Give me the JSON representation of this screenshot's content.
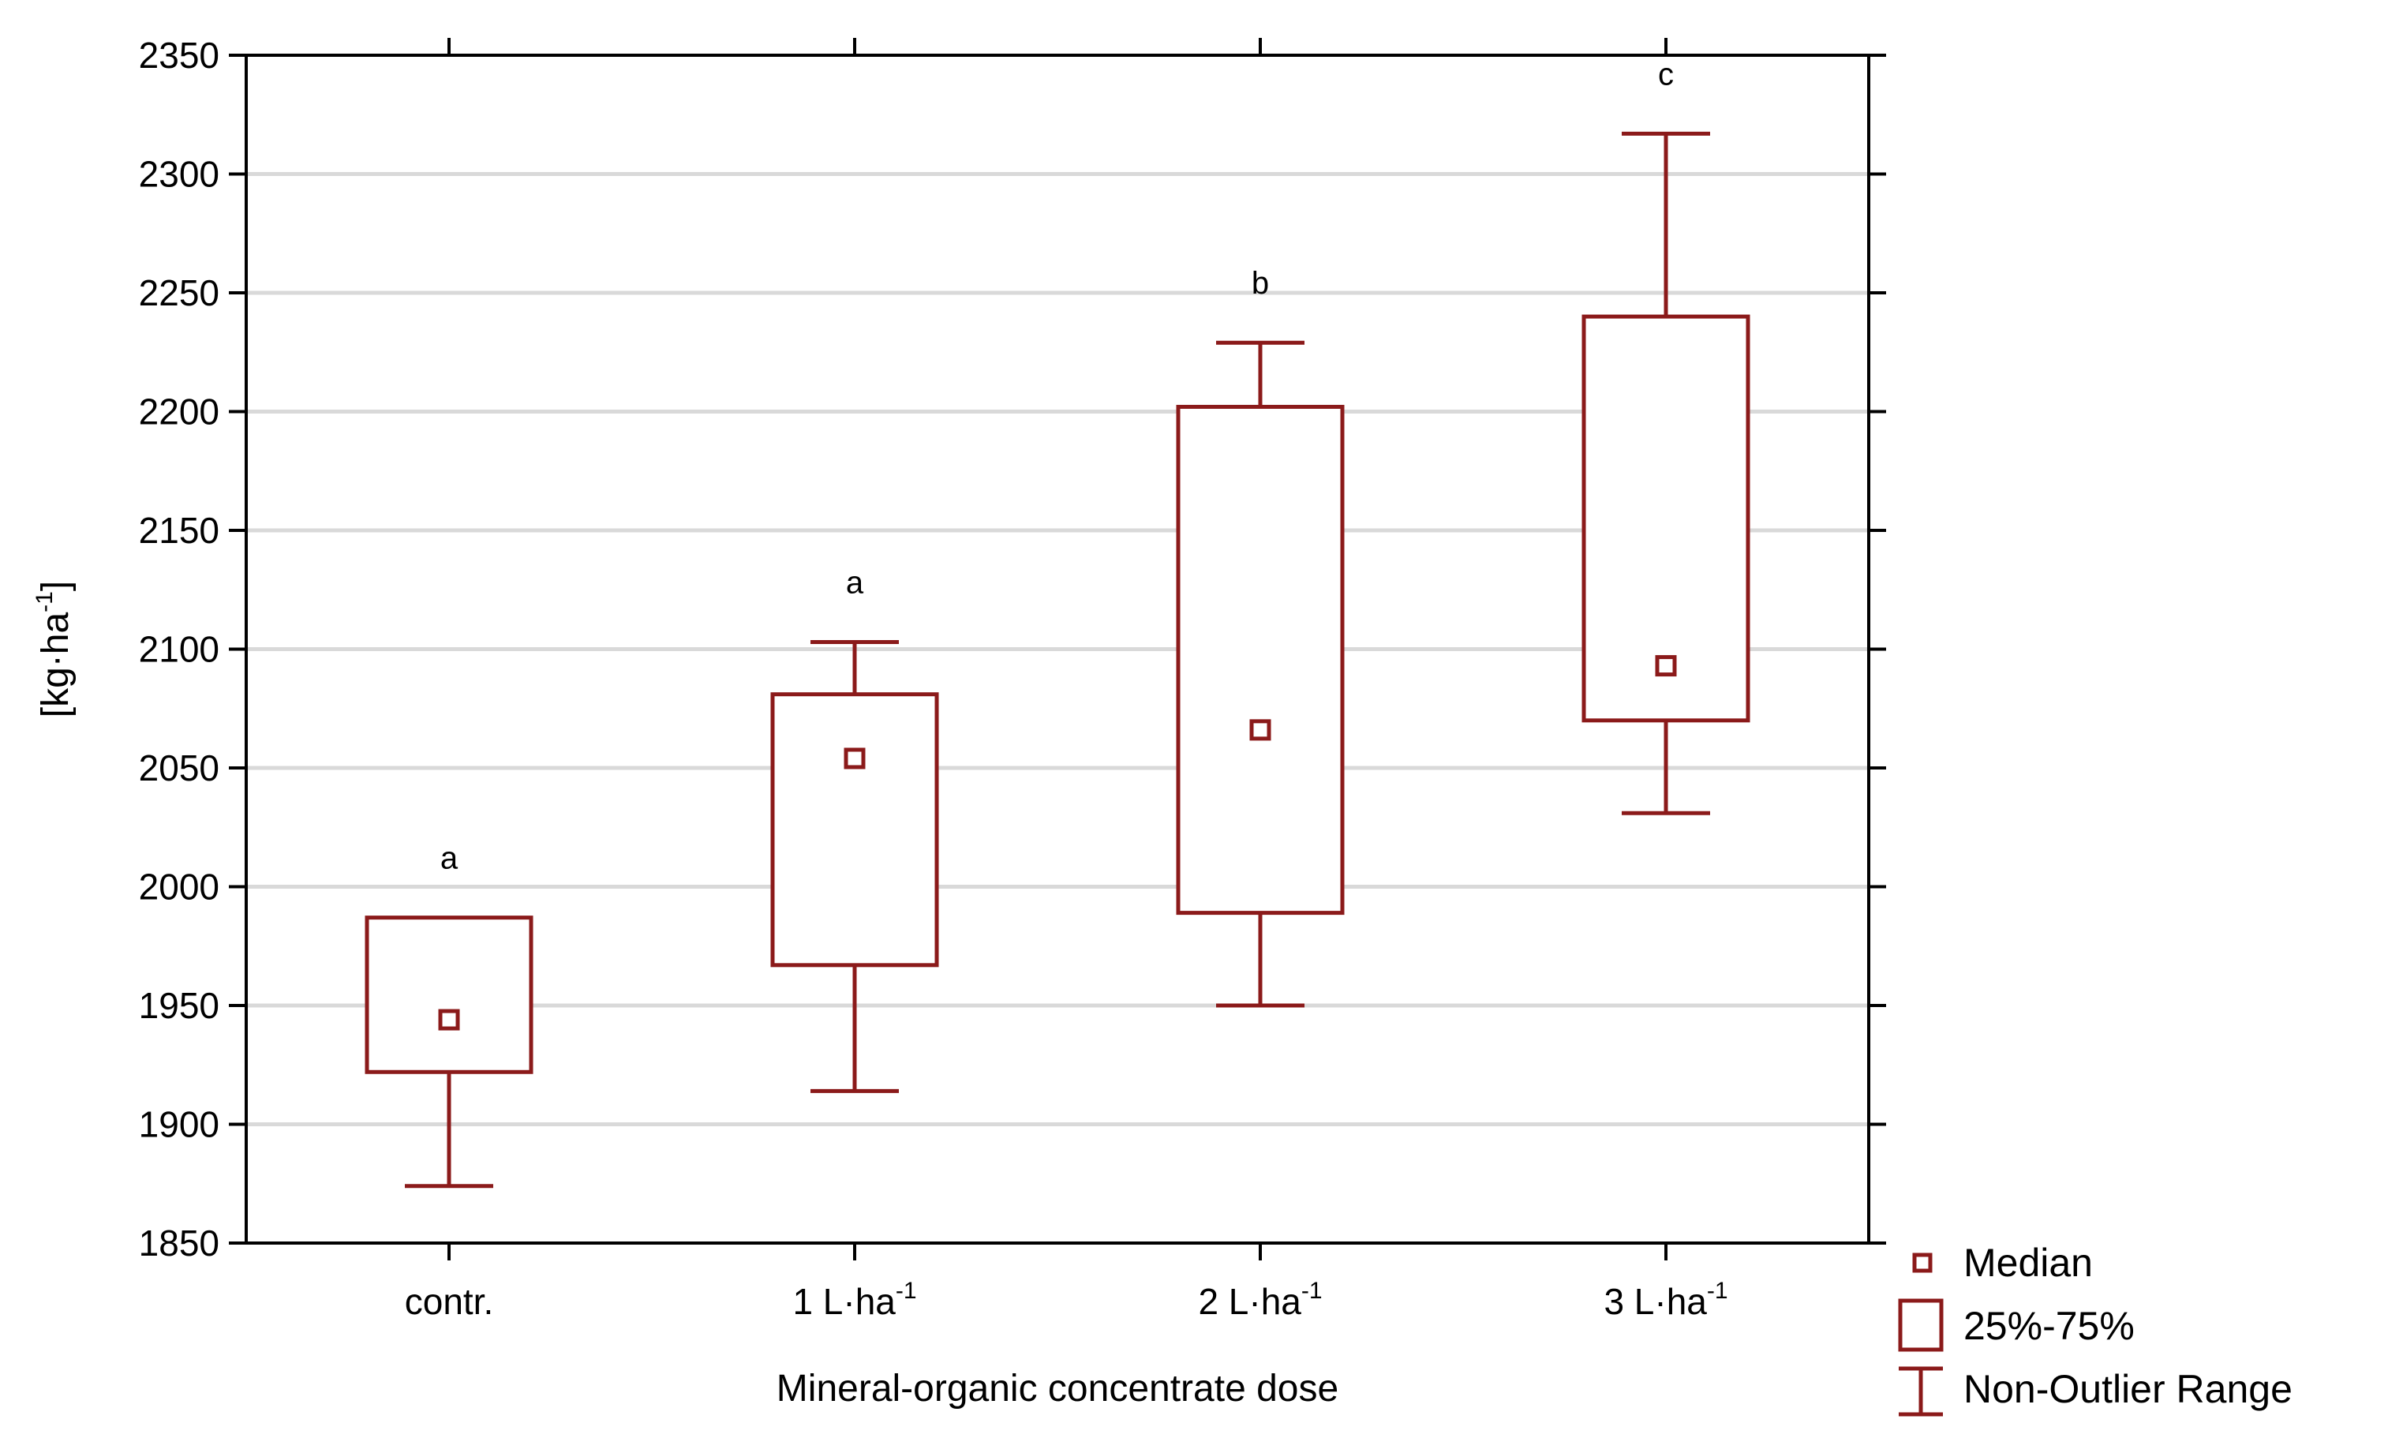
{
  "chart_data": {
    "type": "box",
    "xlabel": "Mineral-organic concentrate dose",
    "ylabel": {
      "main": "[kg·ha",
      "sup": "-1",
      "close": "]"
    },
    "ylim": [
      1850,
      2350
    ],
    "yticks": [
      1850,
      1900,
      1950,
      2000,
      2050,
      2100,
      2150,
      2200,
      2250,
      2300,
      2350
    ],
    "grid": true,
    "categories": [
      {
        "label": "contr.",
        "sup": ""
      },
      {
        "label": "1 L·ha",
        "sup": "-1"
      },
      {
        "label": "2 L·ha",
        "sup": "-1"
      },
      {
        "label": "3 L·ha",
        "sup": "-1"
      }
    ],
    "boxes": [
      {
        "median": 1944,
        "q1": 1922,
        "q3": 1987,
        "min": 1874,
        "max": 1987,
        "letter": "a"
      },
      {
        "median": 2054,
        "q1": 1967,
        "q3": 2081,
        "min": 1914,
        "max": 2103,
        "letter": "a"
      },
      {
        "median": 2066,
        "q1": 1989,
        "q3": 2202,
        "min": 1950,
        "max": 2229,
        "letter": "b"
      },
      {
        "median": 2093,
        "q1": 2070,
        "q3": 2240,
        "min": 2031,
        "max": 2317,
        "letter": "c"
      }
    ],
    "legend": {
      "position": "bottom-right",
      "items": [
        "Median",
        "25%-75%",
        "Non-Outlier Range"
      ]
    },
    "colors": {
      "box": "#8b1a1a",
      "grid": "#d9d9d9",
      "axis": "#000000"
    }
  }
}
